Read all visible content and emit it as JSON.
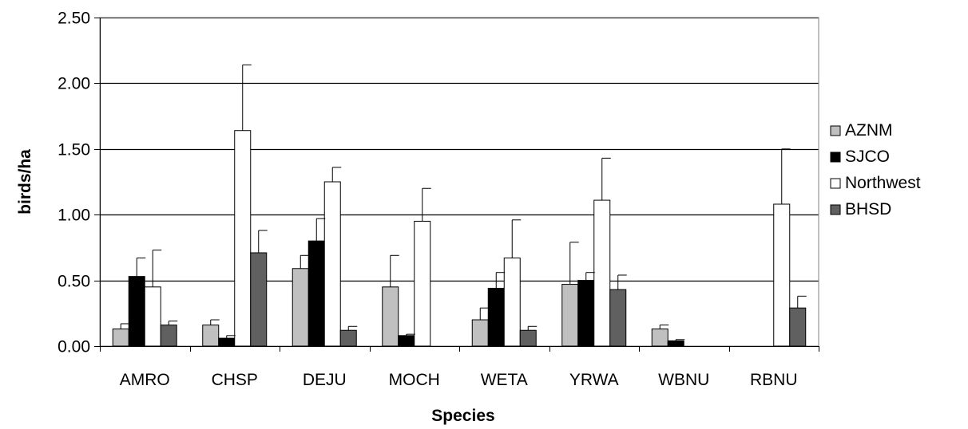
{
  "chart_data": {
    "type": "bar",
    "title": "",
    "xlabel": "Species",
    "ylabel": "birds/ha",
    "ylim": [
      0,
      2.5
    ],
    "yticks": [
      "0.00",
      "0.50",
      "1.00",
      "1.50",
      "2.00",
      "2.50"
    ],
    "ytick_values": [
      0,
      0.5,
      1.0,
      1.5,
      2.0,
      2.5
    ],
    "grid": "horizontal",
    "legend_position": "right",
    "categories": [
      "AMRO",
      "CHSP",
      "DEJU",
      "MOCH",
      "WETA",
      "YRWA",
      "WBNU",
      "RBNU"
    ],
    "series": [
      {
        "name": "AZNM",
        "color": "#c0c0c0",
        "values": [
          0.13,
          0.16,
          0.59,
          0.45,
          0.2,
          0.47,
          0.13,
          0
        ],
        "errors": [
          0.04,
          0.04,
          0.1,
          0.24,
          0.09,
          0.32,
          0.03,
          0
        ]
      },
      {
        "name": "SJCO",
        "color": "#000000",
        "values": [
          0.53,
          0.06,
          0.8,
          0.08,
          0.44,
          0.5,
          0.04,
          0
        ],
        "errors": [
          0.14,
          0.02,
          0.17,
          0.01,
          0.12,
          0.06,
          0.01,
          0
        ]
      },
      {
        "name": "Northwest",
        "color": "#ffffff",
        "values": [
          0.45,
          1.64,
          1.25,
          0.95,
          0.67,
          1.11,
          0,
          1.08
        ],
        "errors": [
          0.28,
          0.5,
          0.11,
          0.25,
          0.29,
          0.32,
          0,
          0.42
        ]
      },
      {
        "name": "BHSD",
        "color": "#606060",
        "values": [
          0.16,
          0.71,
          0.12,
          0,
          0.12,
          0.43,
          0,
          0.29
        ],
        "errors": [
          0.03,
          0.17,
          0.03,
          0,
          0.03,
          0.11,
          0,
          0.09
        ]
      }
    ]
  }
}
